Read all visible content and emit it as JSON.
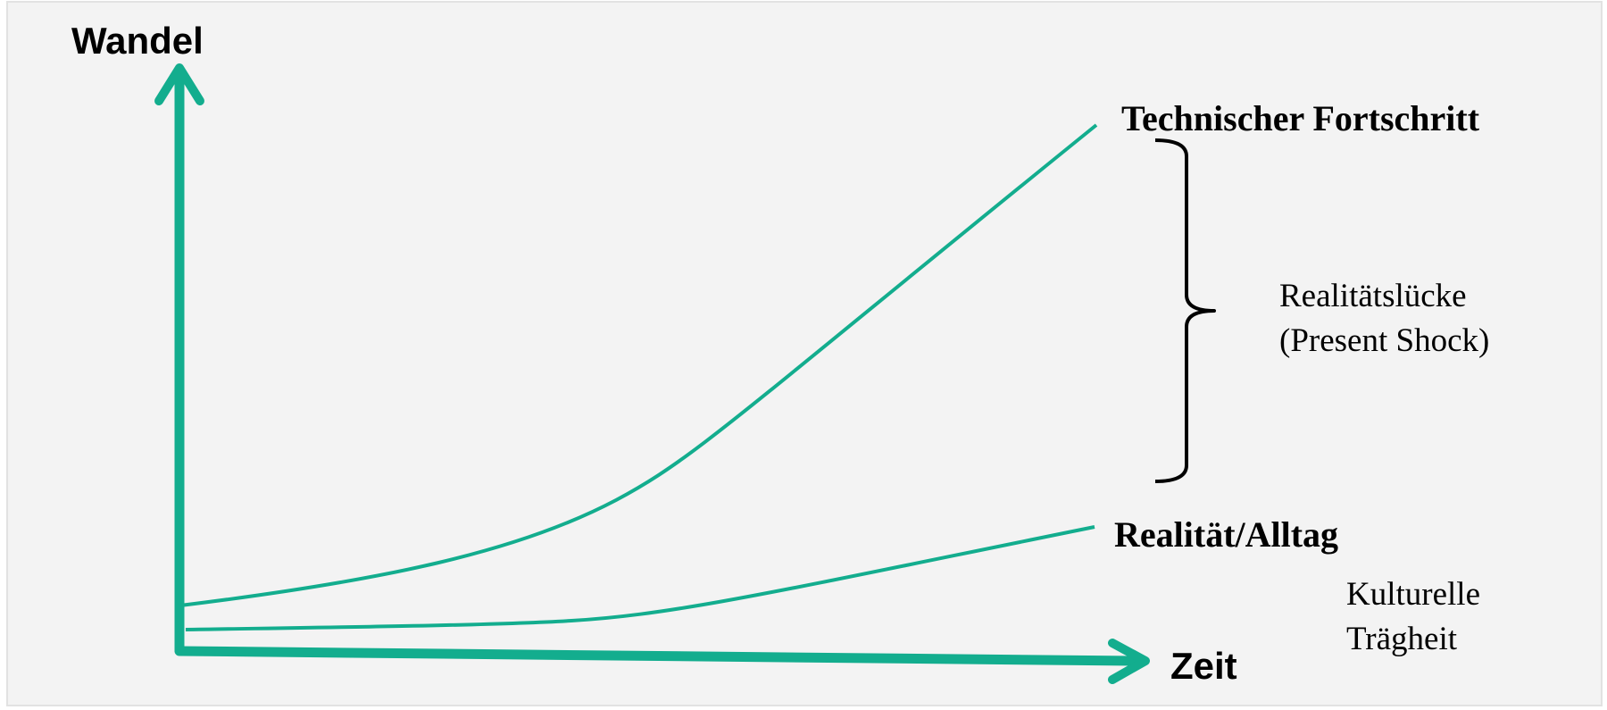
{
  "colors": {
    "background": "#f3f3f3",
    "border": "#e2e2e2",
    "accent": "#13ad8e",
    "text": "#000000"
  },
  "axes": {
    "y_label": "Wandel",
    "x_label": "Zeit"
  },
  "curves": [
    {
      "label": "Technischer Fortschritt"
    },
    {
      "label": "Realität/Alltag"
    }
  ],
  "gap": {
    "label_line1": "Realitätslücke",
    "label_line2": "(Present Shock)"
  },
  "inertia": {
    "label_line1": "Kulturelle",
    "label_line2": "Trägheit"
  }
}
